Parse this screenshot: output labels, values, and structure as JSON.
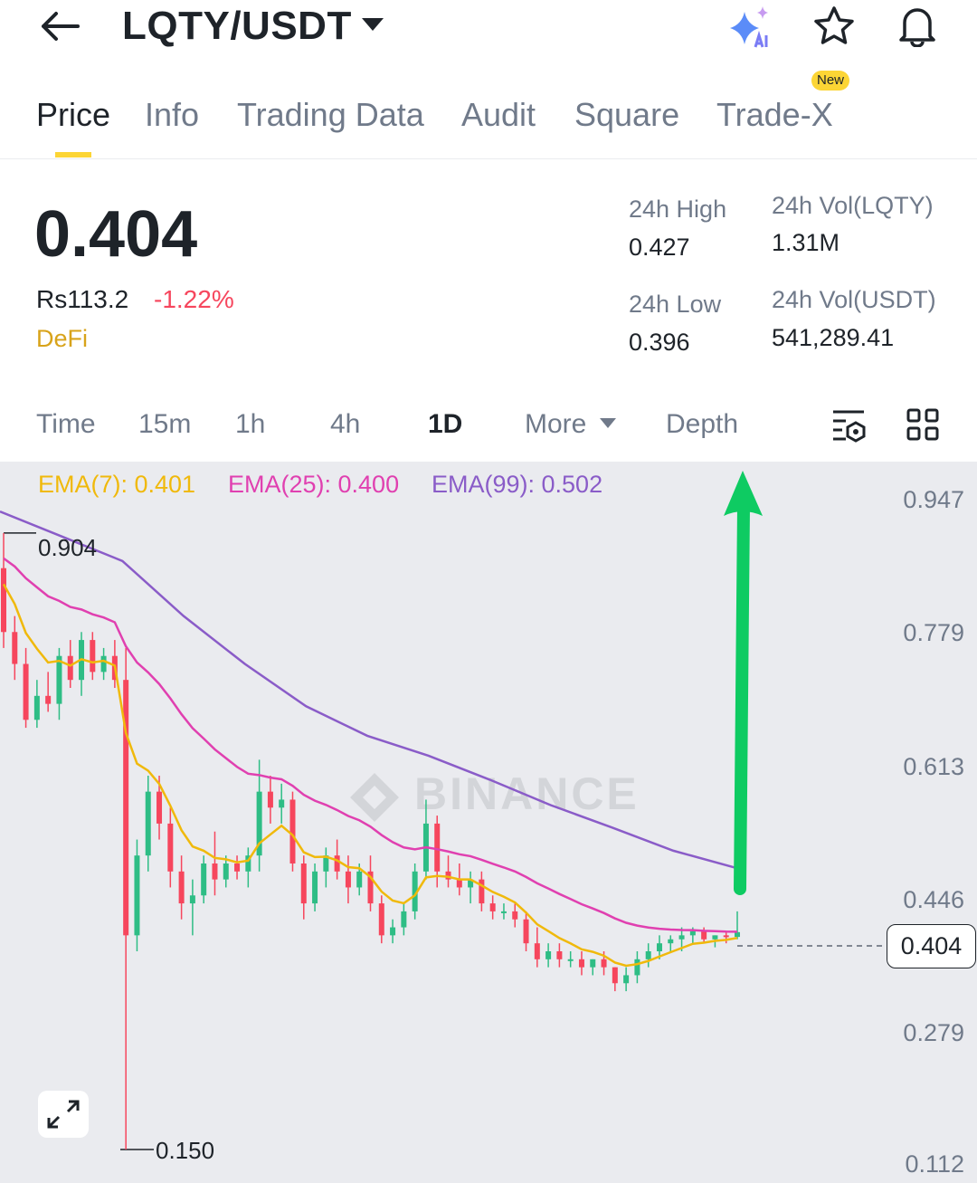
{
  "header": {
    "title": "LQTY/USDT",
    "icons": [
      "back-arrow-icon",
      "dropdown-caret-icon",
      "ai-sparkle-icon",
      "star-icon",
      "bell-icon"
    ]
  },
  "tabs": [
    {
      "label": "Price",
      "active": true
    },
    {
      "label": "Info"
    },
    {
      "label": "Trading Data"
    },
    {
      "label": "Audit"
    },
    {
      "label": "Square"
    },
    {
      "label": "Trade-X",
      "badge": "New"
    }
  ],
  "ticker": {
    "price": "0.404",
    "fiat": "Rs113.2",
    "change": "-1.22%",
    "category": "DeFi",
    "high_label": "24h High",
    "high": "0.427",
    "low_label": "24h Low",
    "low": "0.396",
    "vol_base_label": "24h Vol(LQTY)",
    "vol_base": "1.31M",
    "vol_quote_label": "24h Vol(USDT)",
    "vol_quote": "541,289.41"
  },
  "intervals": {
    "items": [
      "Time",
      "15m",
      "1h",
      "4h",
      "1D",
      "More",
      "Depth"
    ],
    "active": "1D"
  },
  "colors": {
    "up": "#2ebd85",
    "down": "#f6465d",
    "ema7": "#f0b90b",
    "ema25": "#e040b0",
    "ema99": "#8a5cc8",
    "accent": "#fcd535",
    "arrow": "#0ecb62",
    "change": "#f6465d"
  },
  "chart_data": {
    "type": "candlestick",
    "indicators": {
      "ema7": "EMA(7): 0.401",
      "ema25": "EMA(25): 0.400",
      "ema99": "EMA(99): 0.502"
    },
    "y_ticks": [
      "0.947",
      "0.779",
      "0.613",
      "0.446",
      "0.279",
      "0.112"
    ],
    "ylim": [
      0.112,
      0.947
    ],
    "max_marker": "0.904",
    "min_marker": "0.150",
    "last_price": "0.404",
    "watermark": "BINANCE",
    "candles": [
      [
        0.86,
        0.904,
        0.76,
        0.78
      ],
      [
        0.78,
        0.8,
        0.72,
        0.74
      ],
      [
        0.74,
        0.76,
        0.66,
        0.67
      ],
      [
        0.67,
        0.72,
        0.66,
        0.7
      ],
      [
        0.7,
        0.73,
        0.68,
        0.69
      ],
      [
        0.69,
        0.76,
        0.67,
        0.75
      ],
      [
        0.75,
        0.77,
        0.71,
        0.72
      ],
      [
        0.72,
        0.78,
        0.7,
        0.77
      ],
      [
        0.77,
        0.78,
        0.72,
        0.73
      ],
      [
        0.73,
        0.76,
        0.72,
        0.75
      ],
      [
        0.75,
        0.77,
        0.71,
        0.72
      ],
      [
        0.72,
        0.76,
        0.15,
        0.4
      ],
      [
        0.4,
        0.52,
        0.38,
        0.5
      ],
      [
        0.5,
        0.6,
        0.48,
        0.58
      ],
      [
        0.58,
        0.6,
        0.52,
        0.54
      ],
      [
        0.54,
        0.56,
        0.46,
        0.48
      ],
      [
        0.48,
        0.5,
        0.42,
        0.44
      ],
      [
        0.44,
        0.47,
        0.4,
        0.45
      ],
      [
        0.45,
        0.5,
        0.44,
        0.49
      ],
      [
        0.49,
        0.53,
        0.45,
        0.47
      ],
      [
        0.47,
        0.5,
        0.46,
        0.49
      ],
      [
        0.49,
        0.5,
        0.47,
        0.48
      ],
      [
        0.48,
        0.51,
        0.46,
        0.5
      ],
      [
        0.5,
        0.62,
        0.48,
        0.58
      ],
      [
        0.58,
        0.6,
        0.54,
        0.56
      ],
      [
        0.56,
        0.59,
        0.54,
        0.57
      ],
      [
        0.57,
        0.58,
        0.48,
        0.49
      ],
      [
        0.49,
        0.5,
        0.42,
        0.44
      ],
      [
        0.44,
        0.49,
        0.43,
        0.48
      ],
      [
        0.48,
        0.51,
        0.46,
        0.5
      ],
      [
        0.5,
        0.52,
        0.47,
        0.48
      ],
      [
        0.48,
        0.5,
        0.44,
        0.46
      ],
      [
        0.46,
        0.49,
        0.45,
        0.48
      ],
      [
        0.48,
        0.5,
        0.43,
        0.44
      ],
      [
        0.44,
        0.45,
        0.39,
        0.4
      ],
      [
        0.4,
        0.42,
        0.39,
        0.41
      ],
      [
        0.41,
        0.44,
        0.4,
        0.43
      ],
      [
        0.43,
        0.49,
        0.42,
        0.48
      ],
      [
        0.48,
        0.57,
        0.47,
        0.54
      ],
      [
        0.54,
        0.55,
        0.46,
        0.48
      ],
      [
        0.48,
        0.5,
        0.46,
        0.47
      ],
      [
        0.47,
        0.49,
        0.45,
        0.46
      ],
      [
        0.46,
        0.48,
        0.44,
        0.47
      ],
      [
        0.47,
        0.48,
        0.43,
        0.44
      ],
      [
        0.44,
        0.45,
        0.42,
        0.43
      ],
      [
        0.43,
        0.44,
        0.42,
        0.43
      ],
      [
        0.43,
        0.44,
        0.41,
        0.42
      ],
      [
        0.42,
        0.43,
        0.38,
        0.39
      ],
      [
        0.39,
        0.41,
        0.36,
        0.37
      ],
      [
        0.37,
        0.39,
        0.36,
        0.38
      ],
      [
        0.38,
        0.39,
        0.36,
        0.37
      ],
      [
        0.37,
        0.38,
        0.36,
        0.37
      ],
      [
        0.37,
        0.38,
        0.35,
        0.36
      ],
      [
        0.36,
        0.37,
        0.35,
        0.37
      ],
      [
        0.37,
        0.38,
        0.35,
        0.36
      ],
      [
        0.36,
        0.36,
        0.33,
        0.34
      ],
      [
        0.34,
        0.36,
        0.33,
        0.35
      ],
      [
        0.35,
        0.38,
        0.34,
        0.37
      ],
      [
        0.37,
        0.39,
        0.36,
        0.38
      ],
      [
        0.38,
        0.4,
        0.37,
        0.39
      ],
      [
        0.39,
        0.4,
        0.38,
        0.395
      ],
      [
        0.395,
        0.41,
        0.38,
        0.4
      ],
      [
        0.4,
        0.41,
        0.39,
        0.405
      ],
      [
        0.405,
        0.41,
        0.39,
        0.395
      ],
      [
        0.395,
        0.4,
        0.385,
        0.4
      ],
      [
        0.4,
        0.405,
        0.39,
        0.398
      ],
      [
        0.398,
        0.43,
        0.395,
        0.404
      ]
    ],
    "ema99_line": [
      0.931,
      0.9,
      0.869,
      0.8,
      0.74,
      0.687,
      0.65,
      0.625,
      0.595,
      0.563,
      0.535,
      0.506,
      0.485
    ]
  }
}
